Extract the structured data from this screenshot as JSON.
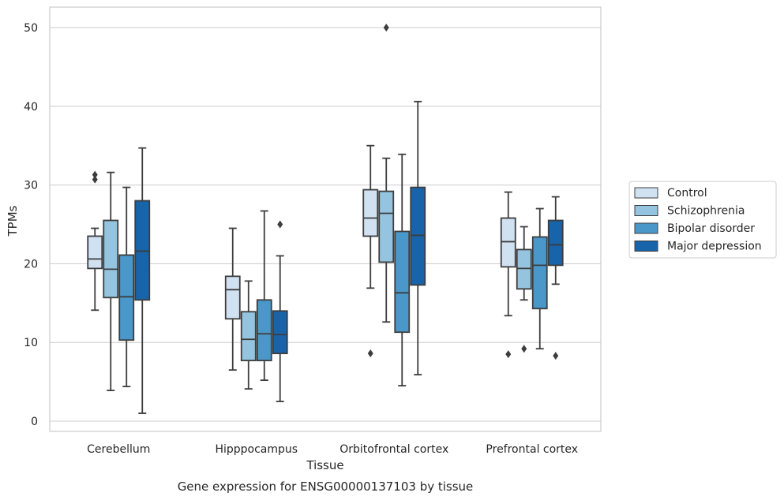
{
  "chart_data": {
    "type": "box",
    "xlabel": "Tissue",
    "ylabel": "TPMs",
    "caption": "Gene expression for ENSG00000137103 by tissue",
    "ylim": [
      -1.3,
      52.6
    ],
    "yticks": [
      0,
      10,
      20,
      30,
      40,
      50
    ],
    "grid": true,
    "legend_position": "right",
    "categories": [
      "Cerebellum",
      "Hipppocampus",
      "Orbitofrontal cortex",
      "Prefrontal cortex"
    ],
    "series": [
      {
        "name": "Control",
        "color": "#d0e1f2",
        "boxes": [
          {
            "whislo": 14.1,
            "q1": 19.4,
            "med": 20.6,
            "q3": 23.5,
            "whishi": 24.5,
            "fliers": [
              30.7,
              31.3
            ]
          },
          {
            "whislo": 6.5,
            "q1": 13.0,
            "med": 16.7,
            "q3": 18.4,
            "whishi": 24.5,
            "fliers": []
          },
          {
            "whislo": 16.9,
            "q1": 23.5,
            "med": 25.8,
            "q3": 29.4,
            "whishi": 35.0,
            "fliers": [
              8.6
            ]
          },
          {
            "whislo": 13.4,
            "q1": 19.6,
            "med": 22.8,
            "q3": 25.8,
            "whishi": 29.1,
            "fliers": [
              8.5
            ]
          }
        ]
      },
      {
        "name": "Schizophrenia",
        "color": "#94c4df",
        "boxes": [
          {
            "whislo": 3.9,
            "q1": 15.7,
            "med": 19.3,
            "q3": 25.5,
            "whishi": 31.6,
            "fliers": []
          },
          {
            "whislo": 4.1,
            "q1": 7.7,
            "med": 10.4,
            "q3": 13.9,
            "whishi": 17.8,
            "fliers": []
          },
          {
            "whislo": 12.6,
            "q1": 20.2,
            "med": 26.4,
            "q3": 29.2,
            "whishi": 33.4,
            "fliers": [
              50.0
            ]
          },
          {
            "whislo": 15.4,
            "q1": 16.8,
            "med": 19.4,
            "q3": 21.8,
            "whishi": 24.7,
            "fliers": [
              9.2
            ]
          }
        ]
      },
      {
        "name": "Bipolar disorder",
        "color": "#4a98c9",
        "boxes": [
          {
            "whislo": 4.4,
            "q1": 10.3,
            "med": 15.8,
            "q3": 21.1,
            "whishi": 29.7,
            "fliers": []
          },
          {
            "whislo": 5.2,
            "q1": 7.7,
            "med": 11.1,
            "q3": 15.4,
            "whishi": 26.7,
            "fliers": []
          },
          {
            "whislo": 4.5,
            "q1": 11.3,
            "med": 16.3,
            "q3": 24.1,
            "whishi": 33.9,
            "fliers": []
          },
          {
            "whislo": 9.2,
            "q1": 14.3,
            "med": 19.8,
            "q3": 23.4,
            "whishi": 27.0,
            "fliers": []
          }
        ]
      },
      {
        "name": "Major depression",
        "color": "#1764ab",
        "boxes": [
          {
            "whislo": 1.0,
            "q1": 15.4,
            "med": 21.6,
            "q3": 28.0,
            "whishi": 34.7,
            "fliers": []
          },
          {
            "whislo": 2.5,
            "q1": 8.6,
            "med": 11.0,
            "q3": 14.0,
            "whishi": 21.0,
            "fliers": [
              25.0
            ]
          },
          {
            "whislo": 5.9,
            "q1": 17.3,
            "med": 23.6,
            "q3": 29.7,
            "whishi": 40.6,
            "fliers": []
          },
          {
            "whislo": 17.4,
            "q1": 19.8,
            "med": 22.4,
            "q3": 25.5,
            "whishi": 28.5,
            "fliers": [
              8.3
            ]
          }
        ]
      }
    ]
  }
}
